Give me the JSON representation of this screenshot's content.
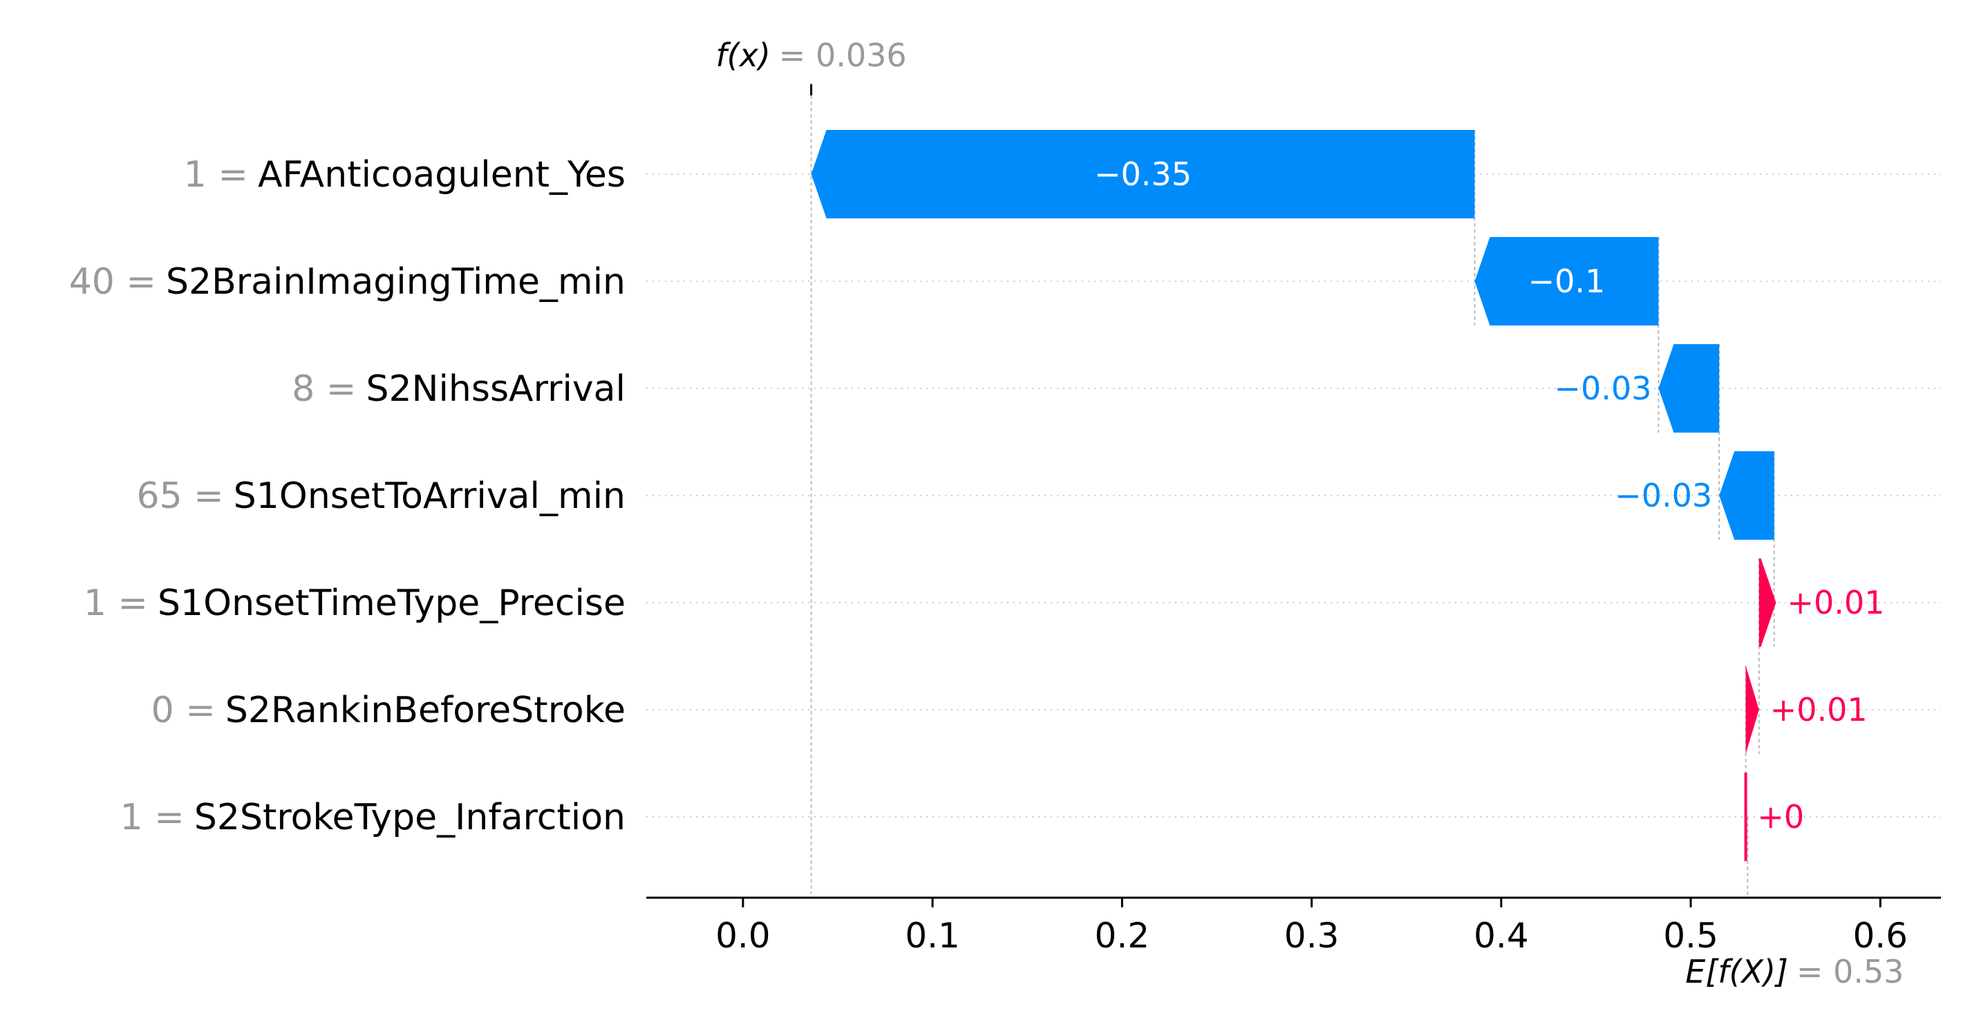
{
  "chart_data": {
    "type": "waterfall",
    "fx": {
      "label": "f(x)",
      "value_text": "= 0.036",
      "value": 0.036
    },
    "efx": {
      "label": "E[f(X)]",
      "value_text": "= 0.53",
      "value": 0.53
    },
    "features": [
      {
        "value_label": "1 =",
        "name": "AFAnticoagulent_Yes",
        "start": 0.386,
        "end": 0.036,
        "label": "−0.35",
        "sign": "neg"
      },
      {
        "value_label": "40 =",
        "name": "S2BrainImagingTime_min",
        "start": 0.483,
        "end": 0.386,
        "label": "−0.1",
        "sign": "neg"
      },
      {
        "value_label": "8 =",
        "name": "S2NihssArrival",
        "start": 0.515,
        "end": 0.483,
        "label": "−0.03",
        "sign": "neg"
      },
      {
        "value_label": "65 =",
        "name": "S1OnsetToArrival_min",
        "start": 0.544,
        "end": 0.515,
        "label": "−0.03",
        "sign": "neg"
      },
      {
        "value_label": "1 =",
        "name": "S1OnsetTimeType_Precise",
        "start": 0.536,
        "end": 0.545,
        "label": "+0.01",
        "sign": "pos"
      },
      {
        "value_label": "0 =",
        "name": "S2RankinBeforeStroke",
        "start": 0.529,
        "end": 0.536,
        "label": "+0.01",
        "sign": "pos"
      },
      {
        "value_label": "1 =",
        "name": "S2StrokeType_Infarction",
        "start": 0.529,
        "end": 0.5293,
        "label": "+0",
        "sign": "pos"
      }
    ],
    "xlim": [
      -0.051,
      0.632
    ],
    "xticks": [
      0.0,
      0.1,
      0.2,
      0.3,
      0.4,
      0.5,
      0.6
    ],
    "xtick_labels": [
      "0.0",
      "0.1",
      "0.2",
      "0.3",
      "0.4",
      "0.5",
      "0.6"
    ],
    "colors": {
      "negative": "#008bfb",
      "positive": "#ff0051",
      "muted": "#999999",
      "text": "#000000"
    }
  }
}
